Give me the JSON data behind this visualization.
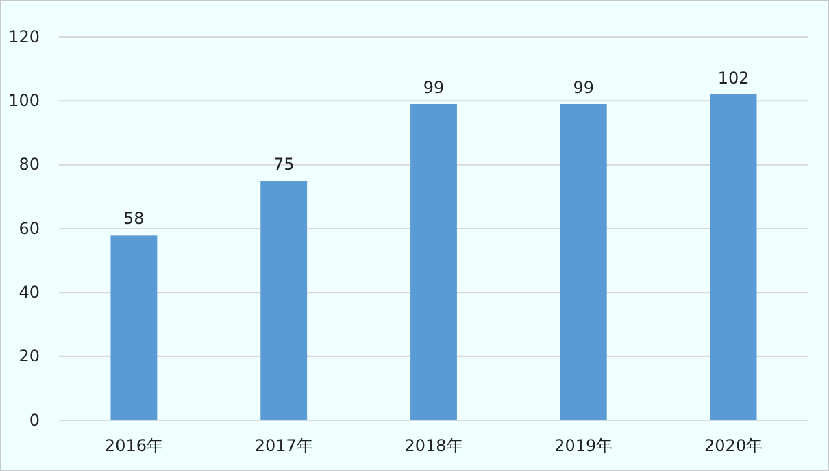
{
  "chart_data": {
    "type": "bar",
    "categories": [
      "2016年",
      "2017年",
      "2018年",
      "2019年",
      "2020年"
    ],
    "values": [
      58,
      75,
      99,
      99,
      102
    ],
    "color": "#5b9bd5",
    "ylim": [
      0,
      120
    ],
    "yticks": [
      0,
      20,
      40,
      60,
      80,
      100,
      120
    ],
    "grid": "y",
    "data_labels": true
  }
}
